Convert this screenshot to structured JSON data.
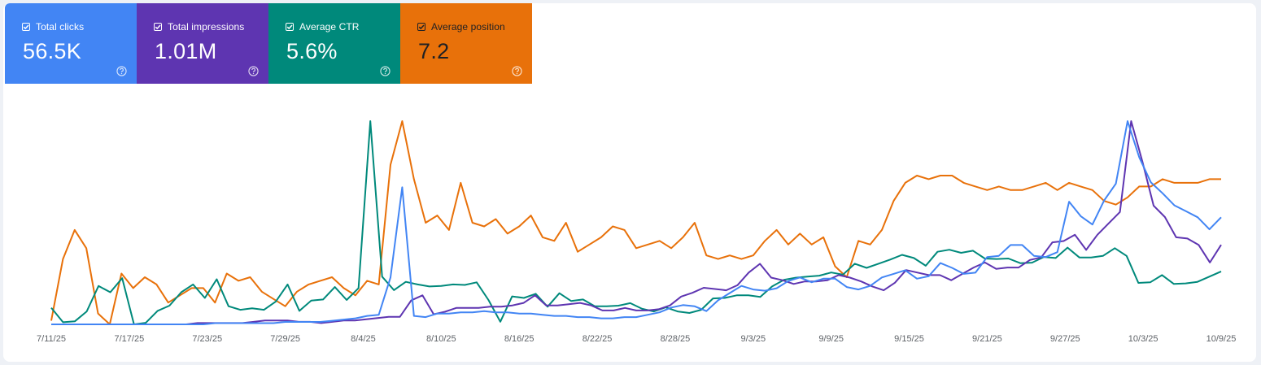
{
  "metrics": {
    "clicks": {
      "label": "Total clicks",
      "value": "56.5K",
      "color": "#4285f4",
      "checked": true
    },
    "impressions": {
      "label": "Total impressions",
      "value": "1.01M",
      "color": "#5e35b1",
      "checked": true
    },
    "ctr": {
      "label": "Average CTR",
      "value": "5.6%",
      "color": "#00897b",
      "checked": true
    },
    "position": {
      "label": "Average position",
      "value": "7.2",
      "color": "#e8710a",
      "checked": true
    }
  },
  "chart_data": {
    "type": "line",
    "x_ticks": [
      "7/11/25",
      "7/17/25",
      "7/23/25",
      "7/29/25",
      "8/4/25",
      "8/10/25",
      "8/16/25",
      "8/22/25",
      "8/28/25",
      "9/3/25",
      "9/9/25",
      "9/15/25",
      "9/21/25",
      "9/27/25",
      "10/3/25",
      "10/9/25"
    ],
    "x_range": [
      "7/11/25",
      "10/10/25"
    ],
    "grid": false,
    "legend": "metric tiles above chart",
    "y_axes_shown": false,
    "series": [
      {
        "name": "Total clicks",
        "key": "clicks",
        "color": "#4285f4",
        "values": [
          1,
          1,
          1,
          1,
          1,
          1,
          1,
          1,
          1,
          1,
          1,
          1,
          1,
          1,
          2,
          2,
          2,
          2,
          2,
          2,
          3,
          3,
          3,
          3,
          4,
          5,
          6,
          8,
          9,
          40,
          115,
          8,
          7,
          10,
          10,
          11,
          11,
          12,
          11,
          11,
          10,
          10,
          9,
          8,
          8,
          7,
          7,
          6,
          6,
          7,
          7,
          9,
          11,
          15,
          17,
          16,
          12,
          21,
          27,
          33,
          30,
          29,
          31,
          37,
          40,
          36,
          39,
          39,
          32,
          30,
          33,
          40,
          43,
          46,
          39,
          41,
          52,
          48,
          43,
          44,
          57,
          58,
          67,
          67,
          58,
          57,
          61,
          103,
          91,
          84,
          104,
          118,
          170,
          140,
          119,
          110,
          100,
          95,
          90,
          80,
          90
        ]
      },
      {
        "name": "Total impressions",
        "key": "impressions",
        "color": "#5e35b1",
        "values": [
          1,
          1,
          1,
          1,
          1,
          1,
          1,
          1,
          1,
          1,
          1,
          1,
          1,
          2,
          2,
          2,
          2,
          2,
          3,
          4,
          4,
          4,
          3,
          3,
          2,
          3,
          4,
          4,
          5,
          6,
          7,
          7,
          20,
          24,
          9,
          11,
          14,
          14,
          14,
          15,
          15,
          16,
          18,
          24,
          16,
          16,
          17,
          18,
          16,
          12,
          12,
          14,
          12,
          12,
          13,
          16,
          23,
          26,
          30,
          29,
          28,
          32,
          42,
          49,
          38,
          36,
          33,
          35,
          35,
          36,
          40,
          38,
          35,
          31,
          28,
          34,
          44,
          42,
          40,
          40,
          36,
          41,
          46,
          50,
          45,
          46,
          46,
          52,
          54,
          66,
          67,
          72,
          60,
          72,
          81,
          90,
          162,
          130,
          95,
          86,
          70,
          69,
          64,
          50,
          64
        ]
      },
      {
        "name": "Average CTR",
        "key": "ctr",
        "color": "#00897b",
        "values": [
          7.0,
          4.2,
          4.4,
          6.3,
          11.2,
          10.0,
          12.7,
          3.8,
          4.1,
          6.4,
          7.4,
          10.0,
          11.5,
          8.9,
          12.5,
          7.3,
          6.6,
          6.9,
          6.6,
          8.2,
          11.5,
          6.4,
          8.4,
          8.6,
          11.0,
          8.5,
          10.8,
          43.0,
          13.0,
          10.4,
          12.0,
          11.5,
          11.1,
          11.2,
          11.5,
          11.4,
          11.9,
          8.5,
          4.3,
          9.2,
          8.9,
          9.7,
          7.2,
          9.8,
          8.3,
          8.6,
          7.3,
          7.3,
          7.4,
          7.9,
          6.8,
          6.3,
          7.1,
          6.3,
          6.0,
          6.6,
          8.8,
          8.9,
          9.4,
          9.4,
          9.1,
          11.1,
          12.4,
          12.8,
          13.0,
          13.2,
          13.8,
          13.4,
          15.5,
          14.7,
          15.5,
          16.3,
          17.2,
          16.6,
          15.1,
          17.8,
          18.2,
          17.6,
          18.0,
          16.5,
          16.4,
          16.5,
          15.6,
          15.7,
          16.8,
          16.6,
          18.6,
          16.7,
          16.7,
          17.0,
          18.5,
          17.0,
          11.8,
          11.9,
          13.3,
          11.6,
          11.7,
          12.0,
          13.0,
          14.0
        ]
      },
      {
        "name": "Average position",
        "key": "position",
        "color": "#e8710a",
        "values": [
          65,
          48,
          40,
          45,
          63,
          66,
          52,
          56,
          53,
          55,
          60,
          58,
          56,
          56,
          60,
          52,
          54,
          53,
          57,
          59,
          61,
          57,
          55,
          54,
          53,
          56,
          58,
          54,
          55,
          22,
          10,
          26,
          38,
          36,
          40,
          27,
          38,
          39,
          37,
          41,
          39,
          36,
          42,
          43,
          38,
          46,
          44,
          42,
          39,
          40,
          45,
          44,
          43,
          45,
          42,
          38,
          47,
          48,
          47,
          48,
          47,
          43,
          40,
          44,
          41,
          44,
          42,
          50,
          53,
          43,
          44,
          40,
          32,
          27,
          25,
          26,
          25,
          25,
          27,
          28,
          29,
          28,
          29,
          29,
          28,
          27,
          29,
          27,
          28,
          29,
          32,
          33,
          31,
          28,
          28,
          26,
          27,
          27,
          27,
          26,
          26
        ]
      }
    ]
  }
}
